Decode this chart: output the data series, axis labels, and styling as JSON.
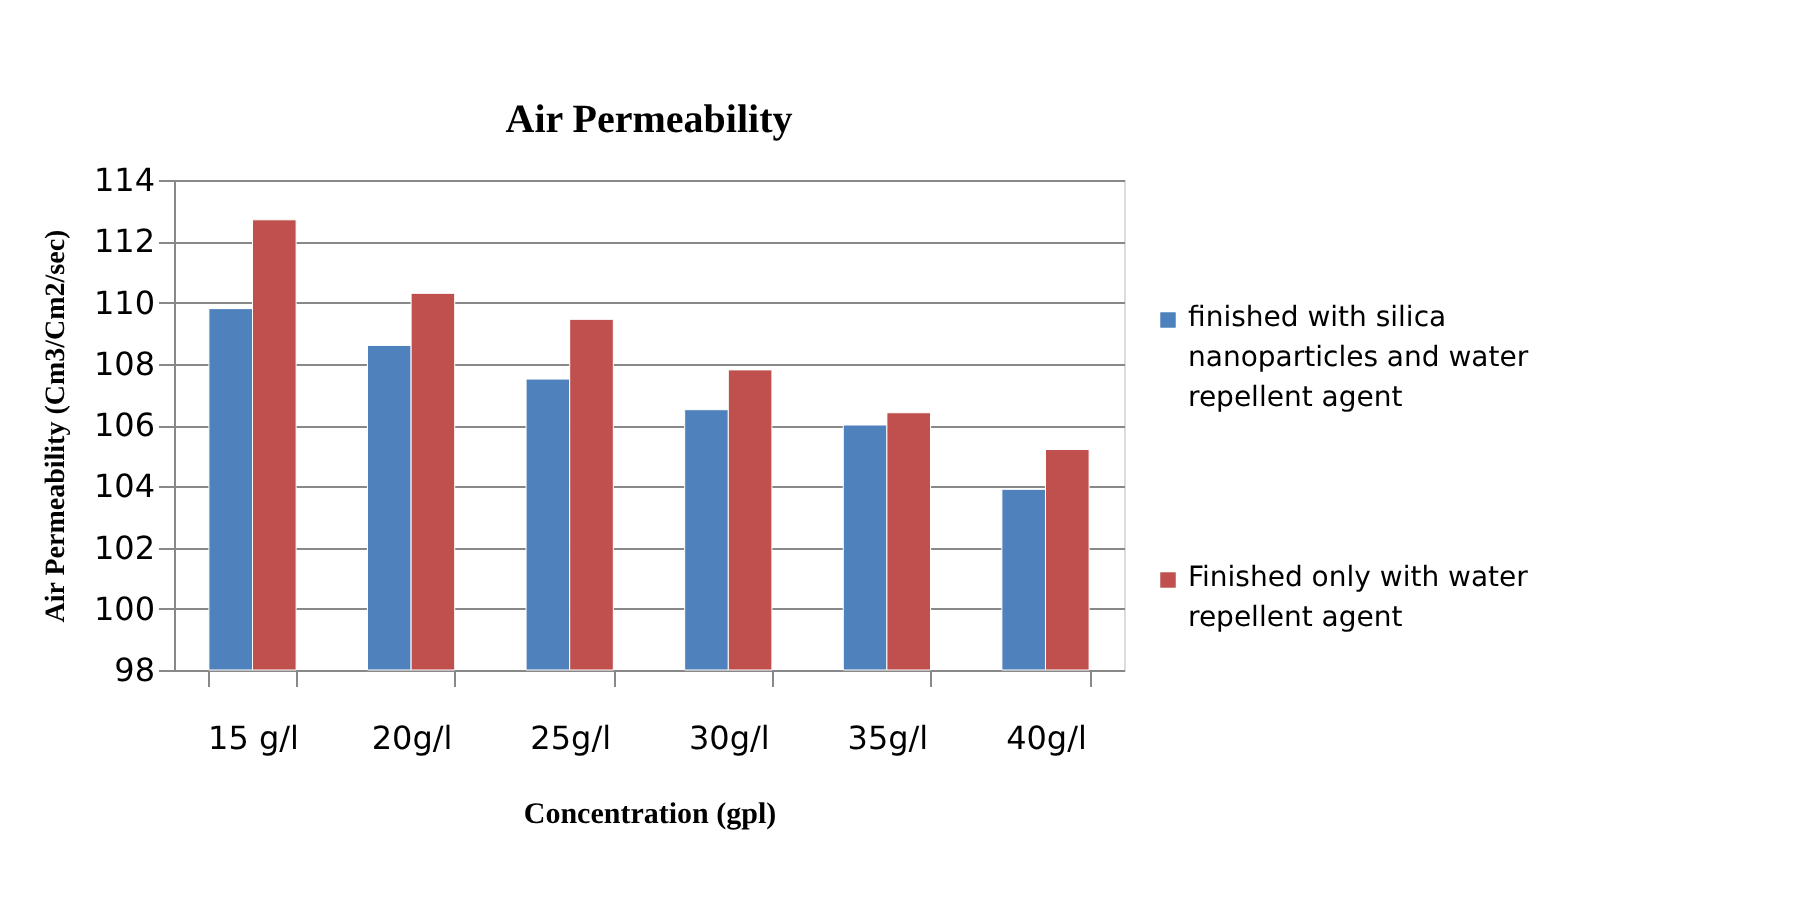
{
  "chart_data": {
    "type": "bar",
    "title": "Air Permeability",
    "xlabel": "Concentration (gpl)",
    "ylabel": "Air Permeability  (Cm3/Cm2/sec)",
    "categories": [
      "15 g/l",
      "20g/l",
      "25g/l",
      "30g/l",
      "35g/l",
      "40g/l"
    ],
    "series": [
      {
        "name": "finished  with silica nanoparticles and water repellent agent",
        "color": "#4f81bd",
        "values": [
          109.8,
          108.6,
          107.5,
          106.5,
          106.0,
          103.9
        ]
      },
      {
        "name": "Finished only with water repellent agent",
        "color": "#c0504d",
        "values": [
          112.7,
          110.3,
          109.45,
          107.8,
          106.4,
          105.2
        ]
      }
    ],
    "ylim": [
      98,
      114
    ],
    "yticks": [
      98,
      100,
      102,
      104,
      106,
      108,
      110,
      112,
      114
    ],
    "grid": "y",
    "legend": "right"
  }
}
